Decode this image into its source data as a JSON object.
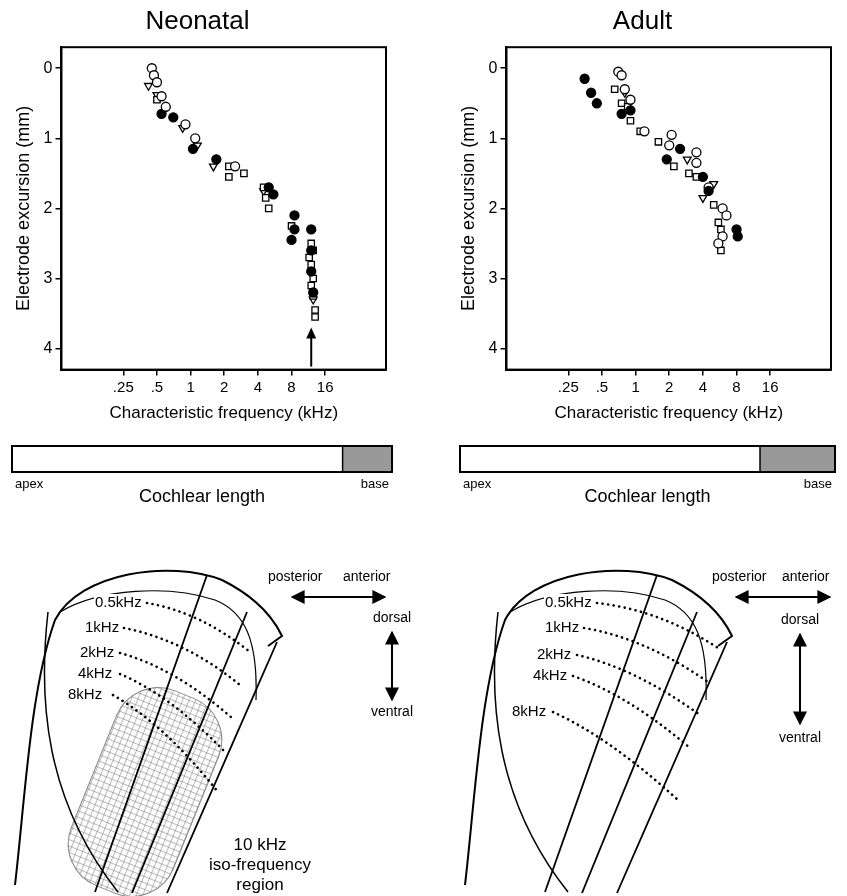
{
  "chart_data": [
    {
      "type": "scatter",
      "title": "Neonatal",
      "x_label": "Characteristic frequency (kHz)",
      "y_label": "Electrode excursion (mm)",
      "log": "x",
      "grid": false,
      "xlim": [
        0.07,
        56
      ],
      "xticks": [
        {
          "value": 0.25,
          "label": ".25"
        },
        {
          "value": 0.5,
          "label": ".5"
        },
        1,
        2,
        4,
        8,
        16
      ],
      "ylim": [
        4.3,
        -0.3
      ],
      "yticks": [
        0,
        1,
        2,
        3,
        4
      ],
      "arrow_x": 12,
      "series": [
        {
          "marker": "circle_open",
          "color": "#000000",
          "x": [
            0.45,
            0.47,
            0.5,
            0.55,
            0.6,
            0.9,
            1.1,
            2.5
          ],
          "values": [
            0.0,
            0.1,
            0.2,
            0.4,
            0.55,
            0.8,
            1.0,
            1.4
          ]
        },
        {
          "marker": "circle",
          "color": "#000000",
          "x": [
            0.55,
            0.7,
            1.05,
            1.7,
            5,
            5.5,
            8.5,
            8.5,
            8,
            12,
            12,
            12,
            12.5
          ],
          "values": [
            0.65,
            0.7,
            1.15,
            1.3,
            1.7,
            1.8,
            2.1,
            2.3,
            2.45,
            2.3,
            2.6,
            2.9,
            3.2
          ]
        },
        {
          "marker": "square_open",
          "color": "#000000",
          "x": [
            0.5,
            2.2,
            2.2,
            3,
            4.5,
            4.7,
            5,
            8,
            12,
            12.5,
            11.5,
            12,
            12.5,
            12,
            12.5,
            13,
            13
          ],
          "values": [
            0.45,
            1.4,
            1.55,
            1.5,
            1.7,
            1.85,
            2.0,
            2.25,
            2.5,
            2.6,
            2.7,
            2.8,
            3.0,
            3.1,
            3.25,
            3.45,
            3.55
          ]
        },
        {
          "marker": "triangle_down_open",
          "color": "#000000",
          "x": [
            0.42,
            0.5,
            0.85,
            1.15,
            1.6,
            4.5,
            12.5
          ],
          "values": [
            0.25,
            0.38,
            0.85,
            1.1,
            1.4,
            1.75,
            3.3
          ]
        }
      ]
    },
    {
      "type": "scatter",
      "title": "Adult",
      "x_label": "Characteristic frequency (kHz)",
      "y_label": "Electrode excursion (mm)",
      "log": "x",
      "grid": false,
      "xlim": [
        0.07,
        56
      ],
      "xticks": [
        {
          "value": 0.25,
          "label": ".25"
        },
        {
          "value": 0.5,
          "label": ".5"
        },
        1,
        2,
        4,
        8,
        16
      ],
      "ylim": [
        4.3,
        -0.3
      ],
      "yticks": [
        0,
        1,
        2,
        3,
        4
      ],
      "series": [
        {
          "marker": "circle",
          "color": "#000000",
          "x": [
            0.35,
            0.4,
            0.45,
            0.75,
            0.9,
            1.9,
            2.5,
            4,
            4.5,
            8,
            8.2
          ],
          "values": [
            0.15,
            0.35,
            0.5,
            0.65,
            0.6,
            1.3,
            1.15,
            1.55,
            1.75,
            2.3,
            2.4
          ]
        },
        {
          "marker": "circle_open",
          "color": "#000000",
          "x": [
            0.7,
            0.75,
            0.8,
            0.9,
            1.2,
            2,
            2.1,
            3.5,
            3.5,
            4.5,
            6,
            6.5,
            6,
            5.5
          ],
          "values": [
            0.05,
            0.1,
            0.3,
            0.45,
            0.9,
            1.1,
            0.95,
            1.2,
            1.35,
            1.7,
            2.0,
            2.1,
            2.4,
            2.5
          ]
        },
        {
          "marker": "square_open",
          "color": "#000000",
          "x": [
            0.65,
            0.75,
            0.85,
            0.9,
            1.1,
            1.6,
            2.2,
            3,
            3.5,
            5,
            5.5,
            5.8,
            5.8
          ],
          "values": [
            0.3,
            0.5,
            0.55,
            0.75,
            0.9,
            1.05,
            1.4,
            1.5,
            1.55,
            1.95,
            2.2,
            2.3,
            2.6
          ]
        },
        {
          "marker": "triangle_down_open",
          "color": "#000000",
          "x": [
            0.8,
            2.9,
            4,
            5
          ],
          "values": [
            0.35,
            1.3,
            1.85,
            1.65
          ]
        }
      ]
    }
  ],
  "cochlea": [
    {
      "label": "Cochlear length",
      "left": "apex",
      "right": "base",
      "shaded_from": 0.87,
      "shade_color": "#999999"
    },
    {
      "label": "Cochlear length",
      "left": "apex",
      "right": "base",
      "shaded_from": 0.8,
      "shade_color": "#999999"
    }
  ],
  "diagrams": [
    {
      "frequency_labels": [
        "0.5kHz",
        "1kHz",
        "2kHz",
        "4kHz",
        "8kHz"
      ],
      "posterior": "posterior",
      "anterior": "anterior",
      "dorsal": "dorsal",
      "ventral": "ventral",
      "region_label": "10 kHz iso-frequency region"
    },
    {
      "frequency_labels": [
        "0.5kHz",
        "1kHz",
        "2kHz",
        "4kHz",
        "8kHz"
      ],
      "posterior": "posterior",
      "anterior": "anterior",
      "dorsal": "dorsal",
      "ventral": "ventral"
    }
  ]
}
